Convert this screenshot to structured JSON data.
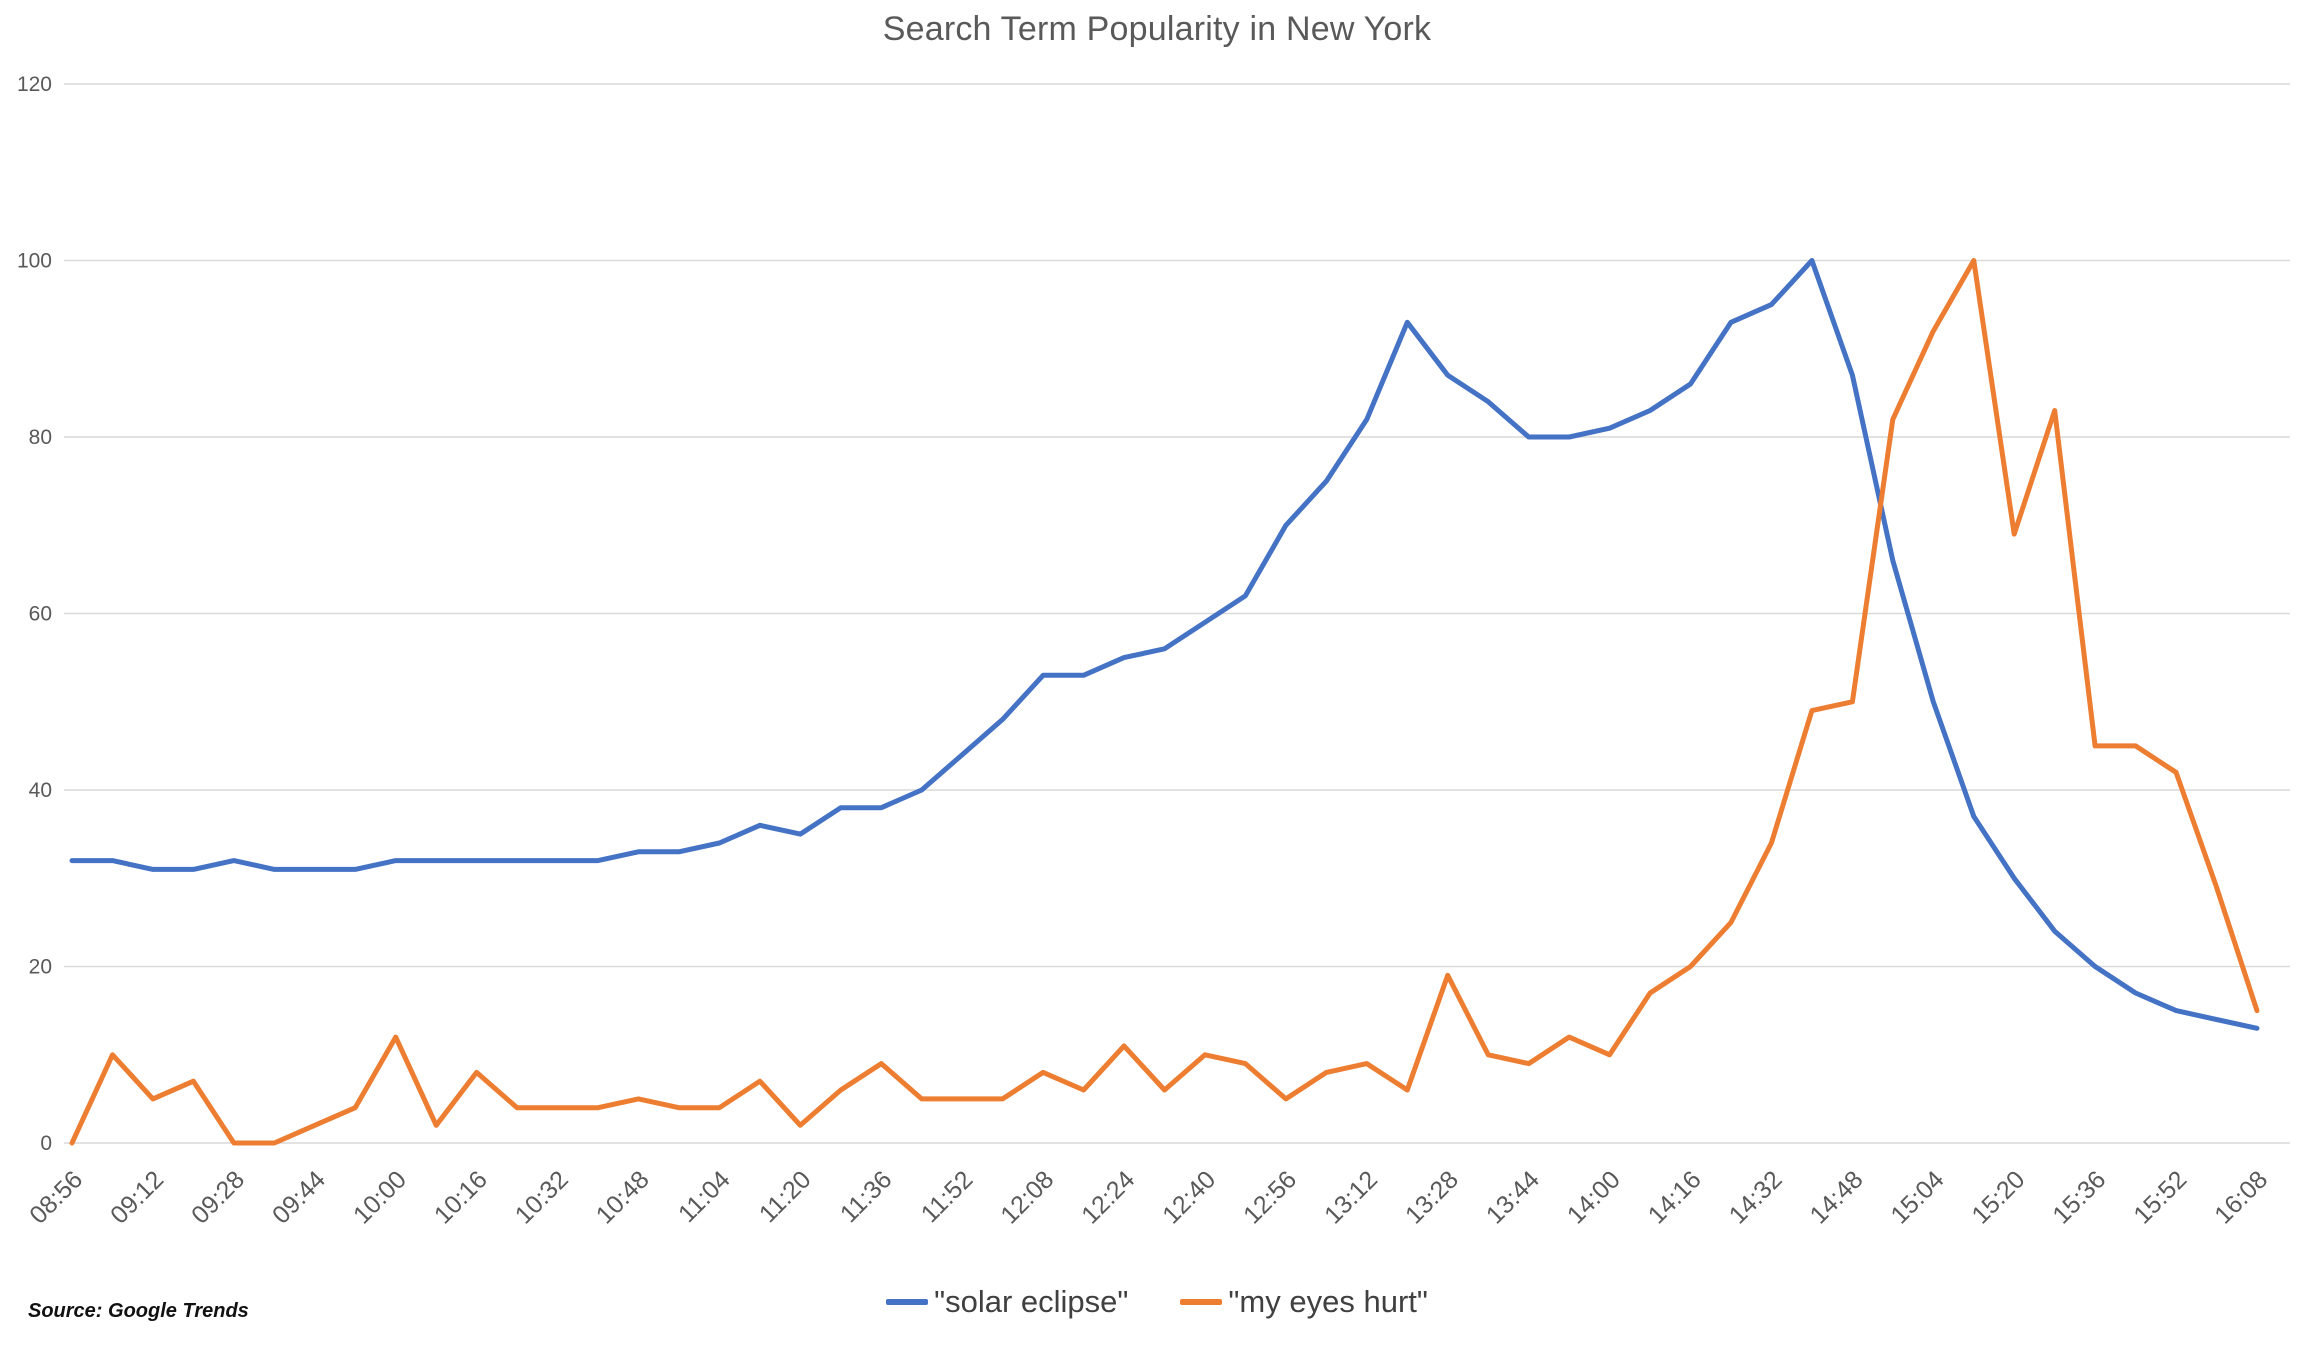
{
  "chart_data": {
    "type": "line",
    "title": "Search Term Popularity in New York",
    "source": "Source: Google Trends",
    "xlabel": "",
    "ylabel": "",
    "ylim": [
      0,
      120
    ],
    "yticks": [
      0,
      20,
      40,
      60,
      80,
      100,
      120
    ],
    "grid": "horizontal",
    "gridline_color": "#d9d9d9",
    "axis_text_color": "#595959",
    "title_text_color": "#595959",
    "legend_text_color": "#404040",
    "legend_position": "bottom-center",
    "x_interval_minutes": 8,
    "xtick_labels": [
      "08:56",
      "09:12",
      "09:28",
      "09:44",
      "10:00",
      "10:16",
      "10:32",
      "10:48",
      "11:04",
      "11:20",
      "11:36",
      "11:52",
      "12:08",
      "12:24",
      "12:40",
      "12:56",
      "13:12",
      "13:28",
      "13:44",
      "14:00",
      "14:16",
      "14:32",
      "14:48",
      "15:04",
      "15:20",
      "15:36",
      "15:52",
      "16:08"
    ],
    "x": [
      "08:56",
      "09:04",
      "09:12",
      "09:20",
      "09:28",
      "09:36",
      "09:44",
      "09:52",
      "10:00",
      "10:08",
      "10:16",
      "10:24",
      "10:32",
      "10:40",
      "10:48",
      "10:56",
      "11:04",
      "11:12",
      "11:20",
      "11:28",
      "11:36",
      "11:44",
      "11:52",
      "12:00",
      "12:08",
      "12:16",
      "12:24",
      "12:32",
      "12:40",
      "12:48",
      "12:56",
      "13:04",
      "13:12",
      "13:20",
      "13:28",
      "13:36",
      "13:44",
      "13:52",
      "14:00",
      "14:08",
      "14:16",
      "14:24",
      "14:32",
      "14:40",
      "14:48",
      "14:56",
      "15:04",
      "15:12",
      "15:20",
      "15:28",
      "15:36",
      "15:44",
      "15:52",
      "16:00",
      "16:08"
    ],
    "series": [
      {
        "name": "\"solar eclipse\"",
        "color": "#4472c4",
        "values": [
          32,
          32,
          31,
          31,
          32,
          31,
          31,
          31,
          32,
          32,
          32,
          32,
          32,
          32,
          33,
          33,
          34,
          36,
          35,
          38,
          38,
          40,
          44,
          48,
          53,
          53,
          55,
          56,
          59,
          62,
          70,
          75,
          82,
          93,
          87,
          84,
          80,
          80,
          81,
          83,
          86,
          93,
          95,
          100,
          87,
          66,
          50,
          37,
          30,
          24,
          20,
          17,
          15,
          14,
          13
        ]
      },
      {
        "name": "\"my eyes hurt\"",
        "color": "#ed7d31",
        "values": [
          0,
          10,
          5,
          7,
          0,
          0,
          2,
          4,
          12,
          2,
          8,
          4,
          4,
          4,
          5,
          4,
          4,
          7,
          2,
          6,
          9,
          5,
          5,
          5,
          8,
          6,
          11,
          6,
          10,
          9,
          5,
          8,
          9,
          6,
          19,
          10,
          9,
          12,
          10,
          17,
          20,
          25,
          34,
          49,
          50,
          82,
          92,
          100,
          69,
          83,
          45,
          45,
          42,
          29,
          15
        ]
      }
    ]
  }
}
